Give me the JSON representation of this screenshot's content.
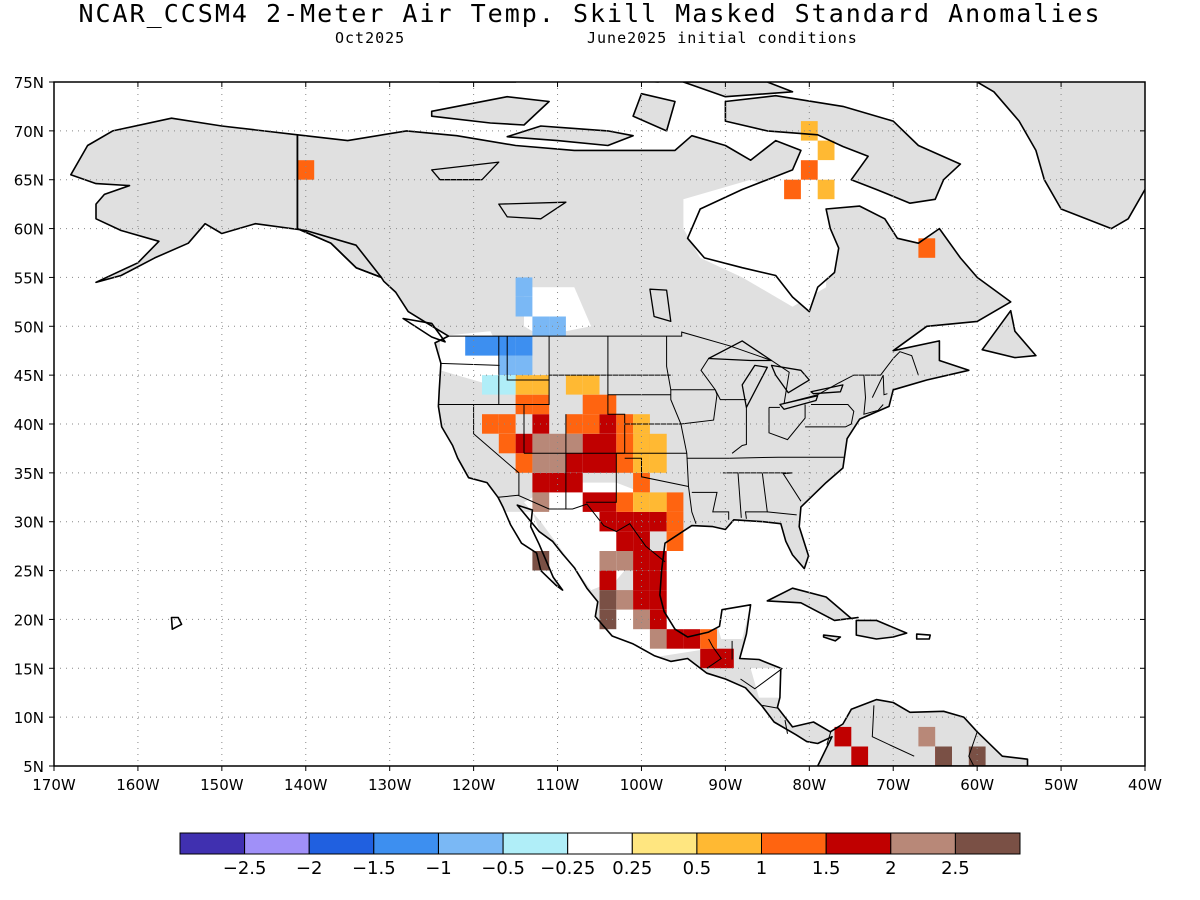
{
  "title": "NCAR_CCSM4 2-Meter Air Temp. Skill Masked Standard Anomalies",
  "subtitle_left": "Oct2025",
  "subtitle_right": "June2025 initial conditions",
  "map": {
    "lon_range": [
      -170,
      -40
    ],
    "lat_range": [
      5,
      75
    ],
    "lon_ticks": [
      -170,
      -160,
      -150,
      -140,
      -130,
      -120,
      -110,
      -100,
      -90,
      -80,
      -70,
      -60,
      -50,
      -40
    ],
    "lon_tick_labels": [
      "170W",
      "160W",
      "150W",
      "140W",
      "130W",
      "120W",
      "110W",
      "100W",
      "90W",
      "80W",
      "70W",
      "60W",
      "50W",
      "40W"
    ],
    "lat_ticks": [
      5,
      10,
      15,
      20,
      25,
      30,
      35,
      40,
      45,
      50,
      55,
      60,
      65,
      70,
      75
    ],
    "lat_tick_labels": [
      "5N",
      "10N",
      "15N",
      "20N",
      "25N",
      "30N",
      "35N",
      "40N",
      "45N",
      "50N",
      "55N",
      "60N",
      "65N",
      "70N",
      "75N"
    ],
    "grid": "dotted",
    "mask_color": "#e0e0e0",
    "anomalies": [
      {
        "value": 2.2,
        "cells": [
          [
            -112,
            38
          ],
          [
            -110,
            38
          ],
          [
            -108,
            38
          ],
          [
            -112,
            36
          ],
          [
            -110,
            36
          ],
          [
            -112,
            32
          ],
          [
            -104,
            26
          ],
          [
            -102,
            26
          ],
          [
            -102,
            22
          ],
          [
            -100,
            20
          ],
          [
            -98,
            18
          ],
          [
            -66,
            8
          ]
        ]
      },
      {
        "value": 1.7,
        "cells": [
          [
            -106,
            38
          ],
          [
            -104,
            38
          ],
          [
            -104,
            40
          ],
          [
            -112,
            40
          ],
          [
            -114,
            38
          ],
          [
            -108,
            36
          ],
          [
            -106,
            36
          ],
          [
            -104,
            36
          ],
          [
            -110,
            34
          ],
          [
            -108,
            34
          ],
          [
            -112,
            34
          ],
          [
            -106,
            32
          ],
          [
            -104,
            32
          ],
          [
            -104,
            30
          ],
          [
            -102,
            30
          ],
          [
            -100,
            30
          ],
          [
            -98,
            30
          ],
          [
            -102,
            28
          ],
          [
            -100,
            28
          ],
          [
            -100,
            26
          ],
          [
            -98,
            26
          ],
          [
            -98,
            24
          ],
          [
            -100,
            24
          ],
          [
            -104,
            24
          ],
          [
            -100,
            22
          ],
          [
            -98,
            22
          ],
          [
            -98,
            20
          ],
          [
            -96,
            18
          ],
          [
            -94,
            18
          ],
          [
            -92,
            16
          ],
          [
            -90,
            16
          ],
          [
            -76,
            8
          ],
          [
            -74,
            6
          ],
          [
            -64,
            6
          ]
        ]
      },
      {
        "value": 1.2,
        "cells": [
          [
            -118,
            40
          ],
          [
            -116,
            40
          ],
          [
            -116,
            38
          ],
          [
            -114,
            36
          ],
          [
            -108,
            40
          ],
          [
            -106,
            40
          ],
          [
            -102,
            40
          ],
          [
            -102,
            38
          ],
          [
            -102,
            36
          ],
          [
            -100,
            34
          ],
          [
            -102,
            32
          ],
          [
            -96,
            32
          ],
          [
            -96,
            30
          ],
          [
            -100,
            38
          ],
          [
            -114,
            42
          ],
          [
            -112,
            42
          ],
          [
            -106,
            42
          ],
          [
            -104,
            42
          ],
          [
            -80,
            66
          ],
          [
            -82,
            64
          ],
          [
            -66,
            58
          ],
          [
            -140,
            66
          ],
          [
            -96,
            28
          ],
          [
            -92,
            18
          ]
        ]
      },
      {
        "value": 0.7,
        "cells": [
          [
            -100,
            40
          ],
          [
            -100,
            38
          ],
          [
            -98,
            38
          ],
          [
            -100,
            36
          ],
          [
            -98,
            36
          ],
          [
            -100,
            32
          ],
          [
            -98,
            32
          ],
          [
            -114,
            44
          ],
          [
            -112,
            44
          ],
          [
            -108,
            44
          ],
          [
            -106,
            44
          ],
          [
            -80,
            70
          ],
          [
            -78,
            68
          ],
          [
            -78,
            64
          ]
        ]
      },
      {
        "value": -0.8,
        "cells": [
          [
            -114,
            52
          ],
          [
            -114,
            54
          ],
          [
            -112,
            50
          ],
          [
            -110,
            50
          ],
          [
            -114,
            46
          ],
          [
            -116,
            46
          ]
        ]
      },
      {
        "value": -1.3,
        "cells": [
          [
            -120,
            48
          ],
          [
            -118,
            48
          ],
          [
            -116,
            48
          ],
          [
            -114,
            48
          ]
        ]
      },
      {
        "value": -0.4,
        "cells": [
          [
            -116,
            44
          ],
          [
            -118,
            44
          ]
        ]
      },
      {
        "value": 2.7,
        "cells": [
          [
            -104,
            22
          ],
          [
            -104,
            20
          ],
          [
            -112,
            26
          ],
          [
            -64,
            6
          ],
          [
            -60,
            6
          ]
        ]
      }
    ]
  },
  "colorbar": {
    "colors": [
      "#4030b0",
      "#a090f8",
      "#2060e0",
      "#3d8ff0",
      "#7ab8f5",
      "#b0eef8",
      "#ffffff",
      "#ffe680",
      "#ffb933",
      "#ff6410",
      "#c00000",
      "#b88878",
      "#7a5045"
    ],
    "labels": [
      "-2.5",
      "-2",
      "-1.5",
      "-1",
      "-0.5",
      "-0.25",
      "0.25",
      "0.5",
      "1",
      "1.5",
      "2",
      "2.5"
    ],
    "display_labels": [
      "−2.5",
      "−2",
      "−1.5",
      "−1",
      "−0.5",
      "−0.25",
      "0.25",
      "0.5",
      "1",
      "1.5",
      "2",
      "2.5"
    ],
    "bounds": [
      -3,
      -2.5,
      -2,
      -1.5,
      -1,
      -0.5,
      -0.25,
      0.25,
      0.5,
      1,
      1.5,
      2,
      2.5,
      3
    ]
  }
}
